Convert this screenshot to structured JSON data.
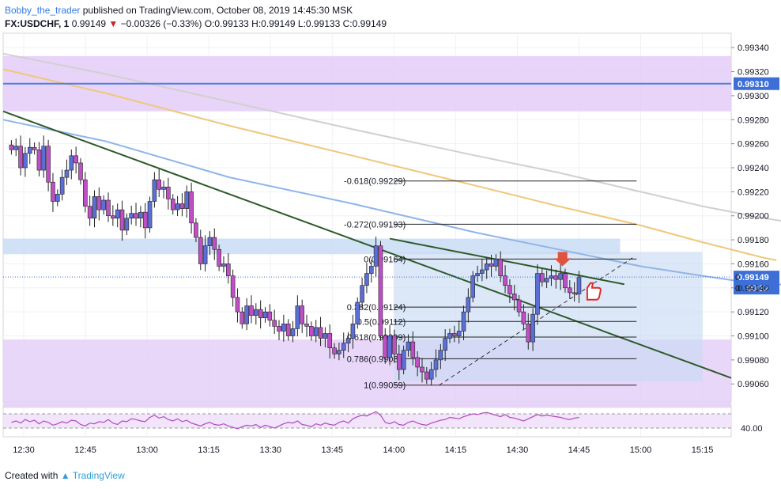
{
  "header": {
    "author": "Bobby_the_trader",
    "published": "published on TradingView.com, October 08, 2019 14:45:30 MSK",
    "symbol": "FX:USDCHF, 1",
    "last": "0.99149",
    "change": "−0.00326 (−0.33%)",
    "o_label": "O:",
    "o": "0.99133",
    "h_label": "H:",
    "h": "0.99149",
    "l_label": "L:",
    "l": "0.99133",
    "c_label": "C:",
    "c": "0.99149"
  },
  "footer": {
    "created_with": "Created with",
    "brand": "TradingView"
  },
  "colors": {
    "up_candle": "#5b6fd6",
    "down_candle": "#c04fc5",
    "zone_purple": "#e4cdf7",
    "zone_blue": "#c9dcf5",
    "resistance_line": "#4f7fe0",
    "trendline": "#2e5a2a",
    "ma_blue": "#8fb5e8",
    "ma_gold": "#f0c77a",
    "ma_gray": "#d0d0d0",
    "rsi_line": "#b04bc0",
    "price_tag": "#3d6fd6"
  },
  "chart_data": {
    "type": "candlestick",
    "symbol": "FX:USDCHF",
    "interval": "1",
    "x_range": [
      "12:25",
      "15:22"
    ],
    "y_range": [
      0.99045,
      0.99352
    ],
    "y_ticks": [
      "0.99060",
      "0.99080",
      "0.99100",
      "0.99120",
      "0.99140",
      "0.99160",
      "0.99180",
      "0.99200",
      "0.99220",
      "0.99240",
      "0.99260",
      "0.99280",
      "0.99300",
      "0.99320",
      "0.99340"
    ],
    "x_ticks": [
      "12:30",
      "12:45",
      "13:00",
      "13:15",
      "13:30",
      "13:45",
      "14:00",
      "14:15",
      "14:30",
      "14:45",
      "15:00",
      "15:15"
    ],
    "candle_closes": [
      0.99255,
      0.99258,
      0.9924,
      0.99252,
      0.99257,
      0.99255,
      0.99238,
      0.99258,
      0.99228,
      0.99212,
      0.99218,
      0.99232,
      0.99238,
      0.9925,
      0.99244,
      0.9923,
      0.99208,
      0.99198,
      0.99216,
      0.99205,
      0.99213,
      0.992,
      0.99198,
      0.99205,
      0.99188,
      0.99198,
      0.99202,
      0.99198,
      0.99203,
      0.9919,
      0.99212,
      0.9923,
      0.99222,
      0.99224,
      0.99214,
      0.99205,
      0.9921,
      0.99206,
      0.9922,
      0.99194,
      0.99182,
      0.9916,
      0.99175,
      0.99182,
      0.99172,
      0.99158,
      0.9916,
      0.9915,
      0.99132,
      0.9912,
      0.9911,
      0.99125,
      0.99117,
      0.99122,
      0.99115,
      0.9912,
      0.99113,
      0.99108,
      0.99104,
      0.9911,
      0.991,
      0.99106,
      0.99125,
      0.9911,
      0.99108,
      0.991,
      0.99107,
      0.99098,
      0.99102,
      0.9909,
      0.99085,
      0.99088,
      0.99094,
      0.99098,
      0.9911,
      0.99128,
      0.99142,
      0.99152,
      0.99158,
      0.99175,
      0.991,
      0.99082,
      0.991,
      0.99085,
      0.99072,
      0.99088,
      0.99095,
      0.99082,
      0.99074,
      0.9907,
      0.99064,
      0.99072,
      0.9908,
      0.99088,
      0.99098,
      0.99102,
      0.991,
      0.99104,
      0.9912,
      0.99132,
      0.9915,
      0.99152,
      0.99155,
      0.9916,
      0.99158,
      0.99164,
      0.9915,
      0.99142,
      0.99135,
      0.9913,
      0.9912,
      0.9911,
      0.99095,
      0.99118,
      0.99152,
      0.99145,
      0.99148,
      0.9915,
      0.99147,
      0.99152,
      0.9914,
      0.99136,
      0.99135,
      0.99149
    ],
    "last_price": "0.99149",
    "countdown": "00:32",
    "horizontal_line": {
      "label": "0.99310",
      "value": 0.9931
    },
    "zones": [
      {
        "kind": "resistance",
        "from": 0.99287,
        "to": 0.99333
      },
      {
        "kind": "support",
        "from": 0.9904,
        "to": 0.99097
      },
      {
        "kind": "box",
        "from": 0.99168,
        "to": 0.99181
      }
    ],
    "fibonacci": [
      {
        "label": "-0.618(0.99229)",
        "value": 0.99229
      },
      {
        "label": "-0.272(0.99193)",
        "value": 0.99193
      },
      {
        "label": "0(0.99164)",
        "value": 0.99164
      },
      {
        "label": "0.382(0.99124)",
        "value": 0.99124
      },
      {
        "label": "0.5(0.99112)",
        "value": 0.99112
      },
      {
        "label": "0.618(0.99099)",
        "value": 0.99099
      },
      {
        "label": "0.786(0.99081)",
        "value": 0.99081
      },
      {
        "label": "1(0.99059)",
        "value": 0.99059
      }
    ],
    "rsi_label": "40.00",
    "rsi_values": [
      48,
      50,
      47,
      52,
      49,
      51,
      46,
      50,
      48,
      44,
      46,
      49,
      47,
      51,
      50,
      45,
      43,
      47,
      46,
      49,
      48,
      52,
      47,
      45,
      50,
      49,
      53,
      52,
      50,
      49,
      55,
      58,
      54,
      56,
      52,
      50,
      53,
      49,
      51,
      47,
      45,
      43,
      46,
      48,
      45,
      44,
      46,
      43,
      41,
      39,
      42,
      44,
      43,
      45,
      41,
      44,
      42,
      40,
      43,
      46,
      48,
      47,
      50,
      45,
      44,
      42,
      46,
      44,
      47,
      45,
      44,
      48,
      50,
      47,
      53,
      56,
      58,
      57,
      60,
      63,
      58,
      48,
      46,
      49,
      45,
      44,
      48,
      50,
      47,
      45,
      44,
      47,
      49,
      51,
      52,
      55,
      54,
      53,
      56,
      58,
      60,
      59,
      61,
      62,
      60,
      58,
      56,
      59,
      55,
      54,
      52,
      50,
      53,
      56,
      59,
      57,
      58,
      57,
      56,
      55,
      53,
      52,
      54,
      55
    ],
    "price_rows": [
      "0",
      "0"
    ]
  }
}
